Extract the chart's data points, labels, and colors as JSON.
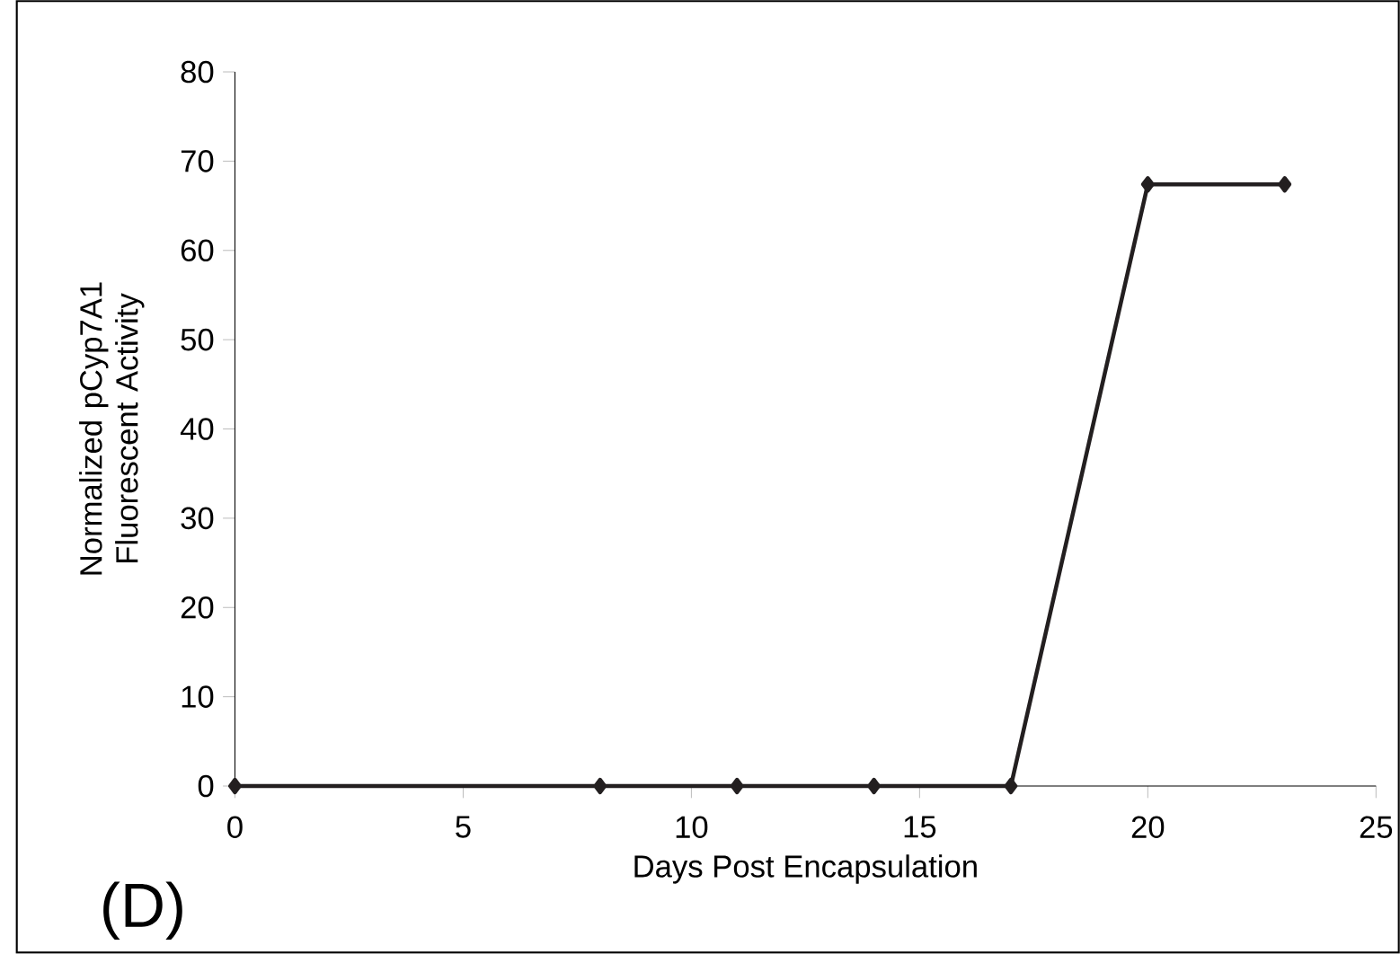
{
  "chart_data": {
    "type": "line",
    "xlabel": "Days Post Encapsulation",
    "ylabel": "Normalized pCyp7A1 Fluorescent Activity",
    "annotations": [
      "(D)"
    ],
    "x": [
      0,
      8,
      11,
      14,
      17,
      20,
      23
    ],
    "series": [
      {
        "color": "#231f20",
        "values": [
          0,
          0,
          0,
          0,
          0,
          67.4,
          67.4
        ]
      }
    ],
    "xlim": [
      0,
      25
    ],
    "xticks": [
      0,
      5,
      10,
      15,
      20,
      25
    ],
    "ylim": [
      0,
      80
    ],
    "yticks": [
      0,
      10,
      20,
      30,
      40,
      50,
      60,
      70,
      80
    ],
    "marker": "diamond",
    "line_style": "solid",
    "grid": false
  }
}
